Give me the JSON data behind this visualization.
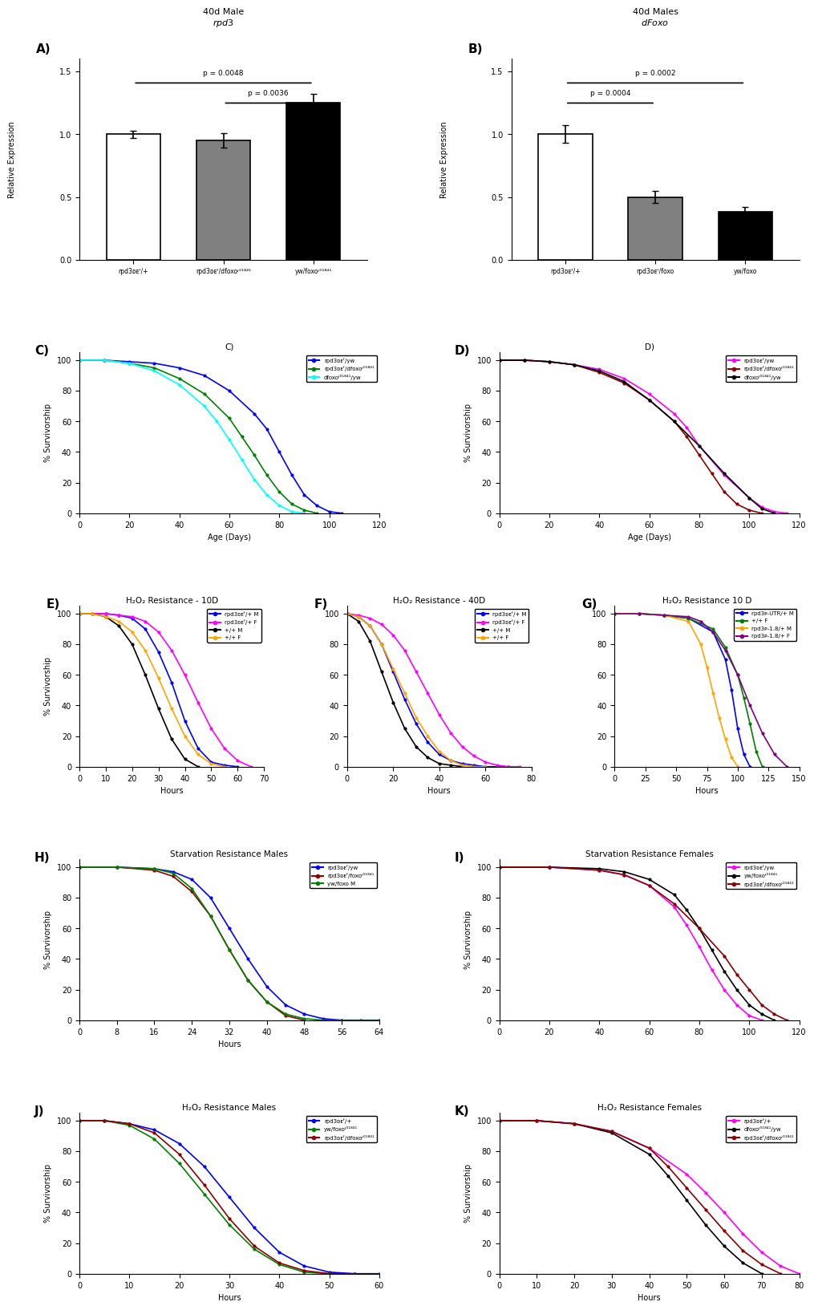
{
  "figsize": [
    10.2,
    16.11
  ],
  "background": "white",
  "panelA": {
    "title_line1": "40d Male",
    "title_line2": "rpd3",
    "title_italic": true,
    "bars": [
      1.0,
      0.95,
      1.25
    ],
    "errors": [
      0.03,
      0.06,
      0.07
    ],
    "colors": [
      "white",
      "#808080",
      "black"
    ],
    "edgecolors": [
      "black",
      "black",
      "black"
    ],
    "xlabels": [
      "rpd3ᴅᴇᶠ/+",
      "rpd3ᴅᴇᶠ/dfoxoᶡ⁰¹⁸⁴¹",
      "yw/foxoᶡ⁰¹⁸⁴¹"
    ],
    "ylabel": "Relative Expression",
    "ylim": [
      0,
      1.6
    ],
    "yticks": [
      0.0,
      0.5,
      1.0,
      1.5
    ],
    "sig1_text": "p = 0.0048",
    "sig1_x1": 0,
    "sig1_x2": 2,
    "sig2_text": "p = 0.0036",
    "sig2_x1": 1,
    "sig2_x2": 2
  },
  "panelB": {
    "title_line1": "40d Males",
    "title_line2": "dFoxo",
    "title_italic": true,
    "bars": [
      1.0,
      0.5,
      0.38
    ],
    "errors": [
      0.07,
      0.05,
      0.04
    ],
    "colors": [
      "white",
      "#808080",
      "black"
    ],
    "edgecolors": [
      "black",
      "black",
      "black"
    ],
    "xlabels": [
      "rpd3ᴅᴇᶠ/+",
      "rpd3ᴅᴇᶠ/foxo",
      "yw/foxo"
    ],
    "ylabel": "Relative Expression",
    "ylim": [
      0,
      1.6
    ],
    "yticks": [
      0.0,
      0.5,
      1.0,
      1.5
    ],
    "sig1_text": "p = 0.0002",
    "sig1_x1": 0,
    "sig1_x2": 2,
    "sig2_text": "p = 0.0004",
    "sig2_x1": 0,
    "sig2_x2": 1
  },
  "panelC": {
    "title": "C)",
    "xlabel": "Age (Days)",
    "ylabel": "% Survivorship",
    "xlim": [
      0,
      120
    ],
    "ylim": [
      0,
      105
    ],
    "legend": [
      "rpd3ᴅᴇᶠ/yw",
      "rpd3ᴅᴇᶠ/dfoxoᶡ⁰¹⁸⁴¹",
      "dfoxoᶡ⁰¹⁸⁴¹/yw"
    ],
    "colors": [
      "blue",
      "green",
      "cyan"
    ],
    "curves": [
      {
        "x": [
          0,
          10,
          20,
          30,
          40,
          50,
          60,
          70,
          75,
          80,
          85,
          90,
          95,
          100,
          105
        ],
        "y": [
          100,
          100,
          99,
          98,
          95,
          90,
          80,
          65,
          55,
          40,
          25,
          12,
          5,
          1,
          0
        ]
      },
      {
        "x": [
          0,
          10,
          20,
          30,
          40,
          50,
          60,
          65,
          70,
          75,
          80,
          85,
          90,
          95
        ],
        "y": [
          100,
          100,
          98,
          95,
          88,
          78,
          62,
          50,
          38,
          25,
          14,
          6,
          2,
          0
        ]
      },
      {
        "x": [
          0,
          10,
          20,
          30,
          40,
          50,
          55,
          60,
          65,
          70,
          75,
          80,
          85,
          90
        ],
        "y": [
          100,
          100,
          98,
          93,
          84,
          70,
          60,
          48,
          35,
          22,
          12,
          5,
          1,
          0
        ]
      }
    ]
  },
  "panelD": {
    "title": "D)",
    "xlabel": "Age (Days)",
    "ylabel": "% Survivorship",
    "xlim": [
      0,
      120
    ],
    "ylim": [
      0,
      105
    ],
    "legend": [
      "rpd3ᴅᴇᶠ/yw",
      "rpd3ᴅᴇᶠ/dfoxoᶡ⁰¹⁸⁴¹",
      "dfoxoᶡ⁰¹⁸⁴¹/yw"
    ],
    "colors": [
      "magenta",
      "darkred",
      "black"
    ],
    "curves": [
      {
        "x": [
          0,
          10,
          20,
          30,
          40,
          50,
          60,
          70,
          75,
          80,
          90,
          100,
          105,
          110,
          115
        ],
        "y": [
          100,
          100,
          99,
          97,
          94,
          88,
          78,
          65,
          56,
          44,
          25,
          10,
          4,
          1,
          0
        ]
      },
      {
        "x": [
          0,
          10,
          20,
          30,
          40,
          50,
          60,
          70,
          75,
          80,
          85,
          90,
          95,
          100,
          105
        ],
        "y": [
          100,
          100,
          99,
          97,
          92,
          85,
          74,
          60,
          50,
          38,
          26,
          14,
          6,
          2,
          0
        ]
      },
      {
        "x": [
          0,
          10,
          20,
          30,
          40,
          50,
          60,
          70,
          80,
          90,
          100,
          105,
          110
        ],
        "y": [
          100,
          100,
          99,
          97,
          93,
          86,
          74,
          60,
          44,
          26,
          10,
          3,
          0
        ]
      }
    ]
  },
  "panelE": {
    "title": "H₂O₂ Resistance - 10D",
    "xlabel": "Hours",
    "ylabel": "% Survivorship",
    "xlim": [
      0,
      70
    ],
    "ylim": [
      0,
      105
    ],
    "legend": [
      "rpd3ᴅᴇᶠ/+ M",
      "rpd3ᴅᴇᶠ/+ F",
      "+/+ M",
      "+/+ F"
    ],
    "colors": [
      "blue",
      "magenta",
      "black",
      "orange"
    ],
    "curves": [
      {
        "x": [
          0,
          10,
          15,
          20,
          25,
          30,
          35,
          40,
          45,
          50,
          55,
          60
        ],
        "y": [
          100,
          100,
          99,
          97,
          90,
          75,
          55,
          30,
          12,
          3,
          1,
          0
        ]
      },
      {
        "x": [
          0,
          10,
          15,
          20,
          25,
          30,
          35,
          40,
          45,
          50,
          55,
          60,
          65
        ],
        "y": [
          100,
          100,
          99,
          98,
          95,
          88,
          76,
          60,
          42,
          25,
          12,
          4,
          0
        ]
      },
      {
        "x": [
          0,
          5,
          10,
          15,
          20,
          25,
          30,
          35,
          40,
          45
        ],
        "y": [
          100,
          100,
          98,
          92,
          80,
          60,
          38,
          18,
          5,
          0
        ]
      },
      {
        "x": [
          0,
          5,
          10,
          15,
          20,
          25,
          30,
          35,
          40,
          45,
          50,
          55
        ],
        "y": [
          100,
          100,
          98,
          95,
          88,
          76,
          58,
          38,
          20,
          8,
          2,
          0
        ]
      }
    ]
  },
  "panelF": {
    "title": "H₂O₂ Resistance - 40D",
    "xlabel": "Hours",
    "ylabel": "% Survivorship",
    "xlim": [
      0,
      80
    ],
    "ylim": [
      0,
      105
    ],
    "legend": [
      "rpd3ᴅᴇᶠ/+ M",
      "rpd3ᴅᴇᶠ/+ F",
      "+/+ M",
      "+/+ F"
    ],
    "colors": [
      "blue",
      "magenta",
      "black",
      "orange"
    ],
    "curves": [
      {
        "x": [
          0,
          5,
          10,
          15,
          20,
          25,
          30,
          35,
          40,
          45,
          50,
          55,
          60,
          65,
          70
        ],
        "y": [
          100,
          98,
          92,
          80,
          62,
          44,
          28,
          16,
          8,
          4,
          2,
          1,
          0,
          0,
          0
        ]
      },
      {
        "x": [
          0,
          5,
          10,
          15,
          20,
          25,
          30,
          35,
          40,
          45,
          50,
          55,
          60,
          65,
          70,
          75
        ],
        "y": [
          100,
          99,
          97,
          93,
          86,
          76,
          62,
          48,
          34,
          22,
          13,
          7,
          3,
          1,
          0,
          0
        ]
      },
      {
        "x": [
          0,
          5,
          10,
          15,
          20,
          25,
          30,
          35,
          40,
          45,
          50
        ],
        "y": [
          100,
          95,
          82,
          62,
          42,
          25,
          13,
          6,
          2,
          1,
          0
        ]
      },
      {
        "x": [
          0,
          5,
          10,
          15,
          20,
          25,
          30,
          35,
          40,
          45,
          50,
          55,
          60
        ],
        "y": [
          100,
          98,
          92,
          80,
          64,
          48,
          32,
          20,
          10,
          4,
          1,
          0,
          0
        ]
      }
    ]
  },
  "panelG": {
    "title": "H₂O₂ Resistance 10 D",
    "xlabel": "Hours",
    "ylabel": "% Survivorship",
    "xlim": [
      0,
      150
    ],
    "ylim": [
      0,
      105
    ],
    "legend": [
      "rpd3ᴘ-UTR/+ M",
      "+/+ F",
      "rpd3ᴘ-1.8/+ M",
      "rpd3ᴘ-1.8/+ F"
    ],
    "colors": [
      "blue",
      "green",
      "orange",
      "purple"
    ],
    "curves": [
      {
        "x": [
          0,
          20,
          40,
          60,
          80,
          90,
          95,
          100,
          105,
          110
        ],
        "y": [
          100,
          100,
          99,
          97,
          88,
          70,
          50,
          25,
          8,
          0
        ]
      },
      {
        "x": [
          0,
          20,
          40,
          60,
          80,
          90,
          100,
          105,
          110,
          115,
          120
        ],
        "y": [
          100,
          100,
          99,
          97,
          90,
          78,
          60,
          45,
          28,
          10,
          0
        ]
      },
      {
        "x": [
          0,
          20,
          40,
          60,
          70,
          75,
          80,
          85,
          90,
          95,
          100
        ],
        "y": [
          100,
          100,
          99,
          95,
          80,
          65,
          48,
          32,
          18,
          6,
          0
        ]
      },
      {
        "x": [
          0,
          20,
          40,
          60,
          70,
          80,
          90,
          100,
          110,
          120,
          130,
          140
        ],
        "y": [
          100,
          100,
          99,
          98,
          95,
          88,
          76,
          60,
          40,
          22,
          8,
          0
        ]
      }
    ]
  },
  "panelH": {
    "title": "Starvation Resistance Males",
    "xlabel": "Hours",
    "ylabel": "% Survivorship",
    "xlim": [
      0,
      64
    ],
    "ylim": [
      0,
      105
    ],
    "xticks": [
      0,
      8,
      16,
      24,
      32,
      40,
      48,
      56,
      64
    ],
    "legend": [
      "rpd3ᴅᴇᶠ/yw",
      "rpd3ᴅᴇᶠ/foxoᶡ⁰¹⁸⁴¹",
      "yw/foxo M"
    ],
    "colors": [
      "blue",
      "darkred",
      "green"
    ],
    "curves": [
      {
        "x": [
          0,
          8,
          16,
          20,
          24,
          28,
          32,
          36,
          40,
          44,
          48,
          52,
          56,
          60,
          64
        ],
        "y": [
          100,
          100,
          99,
          97,
          92,
          80,
          60,
          40,
          22,
          10,
          4,
          1,
          0,
          0,
          0
        ]
      },
      {
        "x": [
          0,
          8,
          16,
          20,
          24,
          28,
          32,
          36,
          40,
          44,
          48
        ],
        "y": [
          100,
          100,
          98,
          94,
          84,
          68,
          46,
          26,
          12,
          3,
          0
        ]
      },
      {
        "x": [
          0,
          8,
          16,
          20,
          24,
          28,
          32,
          36,
          40,
          44,
          48,
          52,
          56,
          60,
          64
        ],
        "y": [
          100,
          100,
          99,
          96,
          86,
          68,
          46,
          26,
          12,
          4,
          1,
          0,
          0,
          0,
          0
        ]
      }
    ]
  },
  "panelI": {
    "title": "Starvation Resistance Females",
    "xlabel": "",
    "ylabel": "% Survivorship",
    "xlim": [
      0,
      120
    ],
    "ylim": [
      0,
      105
    ],
    "legend": [
      "rpd3ᴅᴇᶠ/yw",
      "yw/foxoᶡ⁰¹⁸⁴¹",
      "rpd3ᴅᴇᶠ/dfoxoᶡ⁰¹⁸⁴¹"
    ],
    "colors": [
      "magenta",
      "black",
      "darkred"
    ],
    "curves": [
      {
        "x": [
          0,
          20,
          40,
          50,
          60,
          70,
          75,
          80,
          85,
          90,
          95,
          100,
          105
        ],
        "y": [
          100,
          100,
          98,
          95,
          88,
          74,
          62,
          48,
          33,
          20,
          10,
          3,
          0
        ]
      },
      {
        "x": [
          0,
          20,
          40,
          50,
          60,
          70,
          75,
          80,
          85,
          90,
          95,
          100,
          105,
          110
        ],
        "y": [
          100,
          100,
          99,
          97,
          92,
          82,
          72,
          60,
          46,
          32,
          20,
          10,
          4,
          0
        ]
      },
      {
        "x": [
          0,
          20,
          40,
          50,
          60,
          70,
          80,
          90,
          95,
          100,
          105,
          110,
          115
        ],
        "y": [
          100,
          100,
          98,
          95,
          88,
          76,
          60,
          42,
          30,
          20,
          10,
          4,
          0
        ]
      }
    ]
  },
  "panelJ": {
    "title": "H₂O₂ Resistance Males",
    "xlabel": "Hours",
    "ylabel": "% Survivorship",
    "xlim": [
      0,
      60
    ],
    "ylim": [
      0,
      105
    ],
    "legend": [
      "rpd3ᴅᴇᶠ/+",
      "yw/foxoᶡ⁰¹⁸⁴¹",
      "rpd3ᴅᴇᶠ/dfoxoᶡ⁰¹⁸⁴¹"
    ],
    "colors": [
      "blue",
      "green",
      "darkred"
    ],
    "curves": [
      {
        "x": [
          0,
          5,
          10,
          15,
          20,
          25,
          30,
          35,
          40,
          45,
          50,
          55,
          60
        ],
        "y": [
          100,
          100,
          98,
          94,
          85,
          70,
          50,
          30,
          14,
          5,
          1,
          0,
          0
        ]
      },
      {
        "x": [
          0,
          5,
          10,
          15,
          20,
          25,
          30,
          35,
          40,
          45,
          50
        ],
        "y": [
          100,
          100,
          97,
          88,
          72,
          52,
          32,
          16,
          6,
          1,
          0
        ]
      },
      {
        "x": [
          0,
          5,
          10,
          15,
          20,
          25,
          30,
          35,
          40,
          45,
          50,
          55
        ],
        "y": [
          100,
          100,
          98,
          92,
          78,
          58,
          36,
          18,
          7,
          2,
          0,
          0
        ]
      }
    ]
  },
  "panelK": {
    "title": "H₂O₂ Resistance Females",
    "xlabel": "Hours",
    "ylabel": "% Survivorship",
    "xlim": [
      0,
      80
    ],
    "ylim": [
      0,
      105
    ],
    "legend": [
      "rpd3ᴅᴇᶠ/+",
      "dfoxoᶡ⁰¹⁸⁴¹/yw",
      "rpd3ᴅᴇᶠ/dfoxoᶡ⁰¹⁸⁴¹"
    ],
    "colors": [
      "magenta",
      "black",
      "darkred"
    ],
    "curves": [
      {
        "x": [
          0,
          10,
          20,
          30,
          40,
          50,
          55,
          60,
          65,
          70,
          75,
          80
        ],
        "y": [
          100,
          100,
          98,
          93,
          82,
          65,
          53,
          40,
          26,
          14,
          5,
          0
        ]
      },
      {
        "x": [
          0,
          10,
          20,
          30,
          40,
          45,
          50,
          55,
          60,
          65,
          70
        ],
        "y": [
          100,
          100,
          98,
          92,
          78,
          64,
          48,
          32,
          18,
          7,
          0
        ]
      },
      {
        "x": [
          0,
          10,
          20,
          30,
          40,
          45,
          50,
          55,
          60,
          65,
          70,
          75
        ],
        "y": [
          100,
          100,
          98,
          93,
          82,
          70,
          56,
          42,
          28,
          15,
          6,
          0
        ]
      }
    ]
  }
}
